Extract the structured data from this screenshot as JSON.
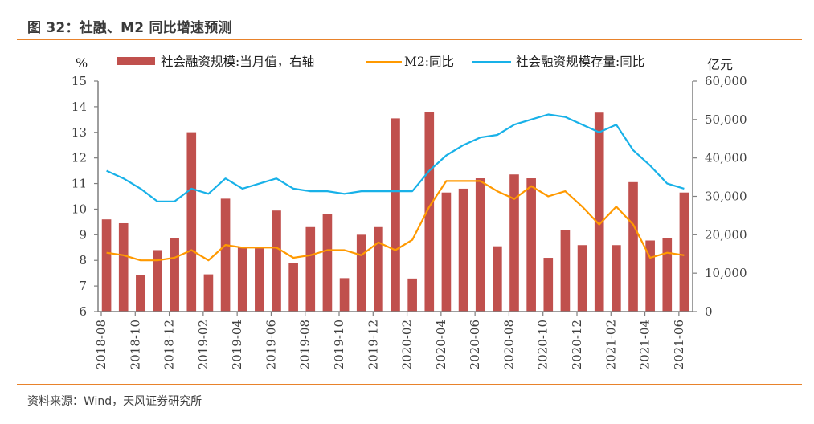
{
  "header": {
    "title": "图 32：社融、M2 同比增速预测"
  },
  "footer": {
    "source": "资料来源：Wind，天风证券研究所"
  },
  "colors": {
    "bar": "#c0504d",
    "m2": "#ff9900",
    "tsf_stock": "#18b1e8",
    "axis": "#7f7f7f",
    "rule": "#e8822b"
  },
  "chart_data": {
    "type": "bar+line",
    "title": "社融、M2 同比增速预测",
    "left_axis": {
      "label": "%",
      "ylim": [
        6,
        15
      ],
      "ticks": [
        6,
        7,
        8,
        9,
        10,
        11,
        12,
        13,
        14,
        15
      ]
    },
    "right_axis": {
      "label": "亿元",
      "ylim": [
        0,
        60000
      ],
      "ticks": [
        0,
        10000,
        20000,
        30000,
        40000,
        50000,
        60000
      ],
      "tick_labels": [
        "0",
        "10,000",
        "20,000",
        "30,000",
        "40,000",
        "50,000",
        "60,000"
      ]
    },
    "grid": false,
    "legend_position": "top",
    "x": [
      "2018-08",
      "2018-09",
      "2018-10",
      "2018-11",
      "2018-12",
      "2019-01",
      "2019-02",
      "2019-03",
      "2019-04",
      "2019-05",
      "2019-06",
      "2019-07",
      "2019-08",
      "2019-09",
      "2019-10",
      "2019-11",
      "2019-12",
      "2020-01",
      "2020-02",
      "2020-03",
      "2020-04",
      "2020-05",
      "2020-06",
      "2020-07",
      "2020-08",
      "2020-09",
      "2020-10",
      "2020-11",
      "2020-12",
      "2021-01",
      "2021-02",
      "2021-03",
      "2021-04",
      "2021-05",
      "2021-06"
    ],
    "x_tick_labels": [
      "2018-08",
      "2018-10",
      "2018-12",
      "2019-02",
      "2019-04",
      "2019-06",
      "2019-08",
      "2019-10",
      "2019-12",
      "2020-02",
      "2020-04",
      "2020-06",
      "2020-08",
      "2020-10",
      "2020-12",
      "2021-02",
      "2021-04",
      "2021-06"
    ],
    "series": [
      {
        "name": "社会融资规模:当月值，右轴",
        "type": "bar",
        "axis": "right",
        "values": [
          24000,
          23000,
          9500,
          16000,
          19200,
          46700,
          9700,
          29400,
          16700,
          16500,
          26300,
          12700,
          22000,
          25300,
          8700,
          20000,
          22000,
          50300,
          8600,
          51900,
          31000,
          32000,
          34700,
          17000,
          35700,
          34700,
          14000,
          21300,
          17300,
          51800,
          17300,
          33700,
          18500,
          19200,
          31000
        ]
      },
      {
        "name": "M2:同比",
        "type": "line",
        "axis": "left",
        "values": [
          8.3,
          8.2,
          8.0,
          8.0,
          8.1,
          8.4,
          8.0,
          8.6,
          8.5,
          8.5,
          8.5,
          8.1,
          8.2,
          8.4,
          8.4,
          8.2,
          8.7,
          8.4,
          8.8,
          10.1,
          11.1,
          11.1,
          11.1,
          10.7,
          10.4,
          10.9,
          10.5,
          10.7,
          10.1,
          9.4,
          10.1,
          9.4,
          8.1,
          8.3,
          8.2
        ]
      },
      {
        "name": "社会融资规模存量:同比",
        "type": "line",
        "axis": "left",
        "values": [
          11.5,
          11.2,
          10.8,
          10.3,
          10.3,
          10.8,
          10.6,
          11.2,
          10.8,
          11.0,
          11.2,
          10.8,
          10.7,
          10.7,
          10.6,
          10.7,
          10.7,
          10.7,
          10.7,
          11.5,
          12.1,
          12.5,
          12.8,
          12.9,
          13.3,
          13.5,
          13.7,
          13.6,
          13.3,
          13.0,
          13.3,
          12.3,
          11.7,
          11.0,
          10.8
        ]
      }
    ]
  }
}
